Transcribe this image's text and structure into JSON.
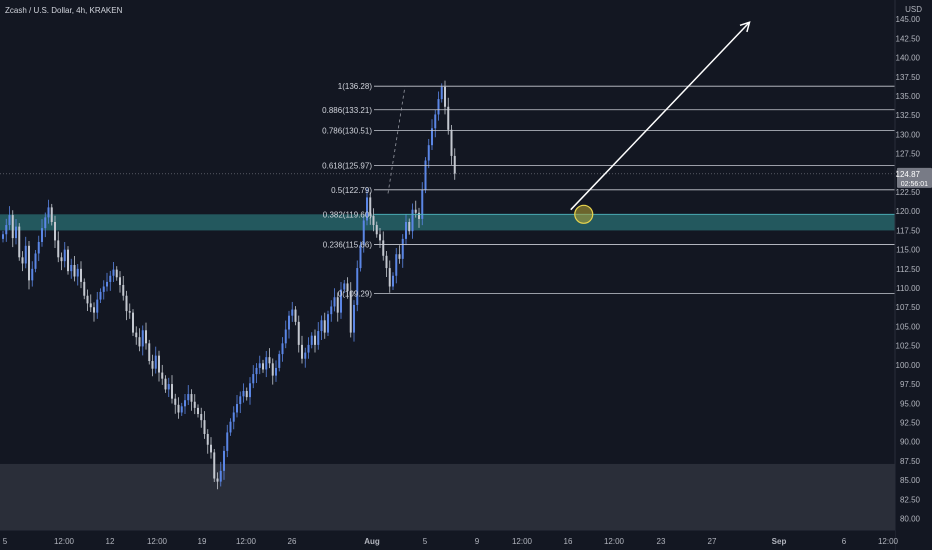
{
  "header": {
    "title": "Zcash / U.S. Dollar, 4h, KRAKEN"
  },
  "chart_data": {
    "type": "candlestick",
    "y_axis": {
      "currency": "USD",
      "range": [
        78.5,
        147.5
      ],
      "ticks": [
        80,
        82.5,
        85,
        87.5,
        90,
        92.5,
        95,
        97.5,
        100,
        102.5,
        105,
        107.5,
        110,
        112.5,
        115,
        117.5,
        120,
        122.5,
        125,
        127.5,
        130,
        132.5,
        135,
        137.5,
        140,
        142.5,
        145,
        147.5
      ],
      "tick_labels": [
        "80.00",
        "82.50",
        "85.00",
        "87.50",
        "90.00",
        "92.50",
        "95.00",
        "97.50",
        "100.00",
        "102.50",
        "105.00",
        "107.50",
        "110.00",
        "112.50",
        "115.00",
        "117.50",
        "120.00",
        "122.50",
        "125.00",
        "127.50",
        "130.00",
        "132.50",
        "135.00",
        "137.50",
        "140.00",
        "142.50",
        "145.00",
        "147.50"
      ]
    },
    "x_axis": {
      "tick_labels": [
        "5",
        "12:00",
        "12",
        "12:00",
        "19",
        "12:00",
        "26",
        "Aug",
        "5",
        "9",
        "12:00",
        "16",
        "12:00",
        "23",
        "27",
        "Sep",
        "6",
        "12:00"
      ]
    },
    "last_price": {
      "value": 124.87,
      "label": "124.87",
      "countdown": "02:56:01"
    },
    "fibonacci": [
      {
        "label": "1(136.28)",
        "price": 136.28
      },
      {
        "label": "0.886(133.21)",
        "price": 133.21
      },
      {
        "label": "0.786(130.51)",
        "price": 130.51
      },
      {
        "label": "0.618(125.97)",
        "price": 125.97
      },
      {
        "label": "0.5(122.79)",
        "price": 122.79
      },
      {
        "label": "0.382(119.60)",
        "price": 119.6,
        "highlight": true
      },
      {
        "label": "0.236(115.66)",
        "price": 115.66
      },
      {
        "label": "0(109.29)",
        "price": 109.29
      }
    ],
    "zones": [
      {
        "name": "resistance-zone",
        "from": 117.5,
        "to": 119.6,
        "color": "#2a6f73"
      },
      {
        "name": "support-zone",
        "from": 78.5,
        "to": 87.1,
        "color": "#2a2e39"
      }
    ],
    "prices": [
      117,
      118.2,
      119.5,
      116.5,
      118,
      114,
      113.2,
      115.5,
      111,
      112.5,
      114.5,
      116,
      117.8,
      119.2,
      120.5,
      118.6,
      116.2,
      114,
      113.5,
      115,
      112.2,
      113,
      111.5,
      112.5,
      110.8,
      109,
      108,
      107.5,
      106.8,
      108.5,
      109.5,
      110.2,
      110.8,
      111.6,
      112.4,
      111.4,
      110.4,
      109,
      107,
      106.8,
      104.2,
      103.6,
      102.4,
      104.5,
      102.8,
      100.5,
      99.5,
      101.2,
      99,
      98.2,
      96.8,
      97.5,
      95.6,
      94.8,
      93.8,
      94.6,
      95.4,
      96.2,
      95.2,
      94.4,
      93.6,
      92.8,
      91,
      89.6,
      88.6,
      85.2,
      84.8,
      86.2,
      88.8,
      91.2,
      92.6,
      93.8,
      94.9,
      95.9,
      96.6,
      95.8,
      97.6,
      98.8,
      99.6,
      100.2,
      99.4,
      101,
      100.2,
      98.6,
      99.6,
      101.4,
      102.8,
      104.6,
      106.4,
      107.2,
      105.6,
      102.6,
      100.8,
      101.6,
      102.6,
      103.8,
      102.6,
      104.4,
      105.8,
      104.2,
      106.6,
      107.6,
      108.8,
      106.8,
      109.8,
      110.6,
      109.6,
      104.2,
      107.8,
      112.6,
      115.6,
      118.8,
      121.8,
      119.4,
      118.2,
      117,
      116.2,
      114.2,
      112.6,
      110.2,
      111.6,
      114.4,
      113.8,
      116.4,
      118.6,
      117.4,
      120.2,
      119.8,
      119,
      122.8,
      126.6,
      128.6,
      130.8,
      132.6,
      134.6,
      136.2,
      133.6,
      130.6,
      127.2,
      124.9
    ],
    "projection_arrow": {
      "from": {
        "index": 175,
        "price": 120.2
      },
      "to": {
        "index": 230,
        "price": 144.6
      }
    },
    "target_marker": {
      "index": 179,
      "price": 119.6
    }
  }
}
